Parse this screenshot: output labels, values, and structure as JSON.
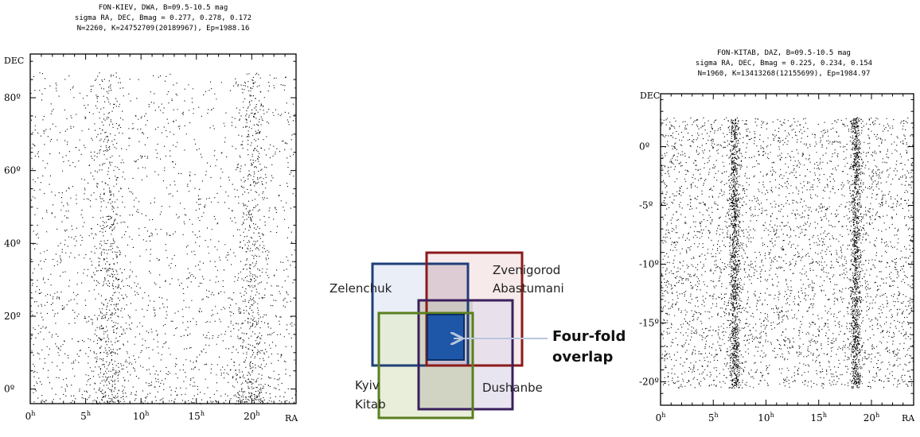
{
  "chart_data": [
    {
      "type": "scatter",
      "title": [
        "FON-KIEV, DWA, B=09.5-10.5 mag",
        "sigma RA, DEC, Bmag = 0.277, 0.278, 0.172",
        "N=2260, K=24752709(20189967), Ep=1988.16"
      ],
      "xlabel": "RA",
      "ylabel": "DEC",
      "xticks": [
        {
          "value": 0,
          "label": "0",
          "sup": "h"
        },
        {
          "value": 5,
          "label": "5",
          "sup": "h"
        },
        {
          "value": 10,
          "label": "10",
          "sup": "h"
        },
        {
          "value": 15,
          "label": "15",
          "sup": "h"
        },
        {
          "value": 20,
          "label": "20",
          "sup": "h"
        }
      ],
      "yticks": [
        {
          "value": 0,
          "label": "0º"
        },
        {
          "value": 20,
          "label": "20º"
        },
        {
          "value": 40,
          "label": "40º"
        },
        {
          "value": 60,
          "label": "60º"
        },
        {
          "value": 80,
          "label": "80º"
        }
      ],
      "xlim": [
        0,
        24
      ],
      "ylim": [
        -4,
        92
      ],
      "data_extent": {
        "ra": [
          0,
          24
        ],
        "dec": [
          -4,
          87
        ]
      },
      "density_bands_ra": [
        7,
        20
      ]
    },
    {
      "type": "scatter",
      "title": [
        "FON-KITAB, DAZ, B=09.5-10.5 mag",
        "sigma RA, DEC, Bmag = 0.225, 0.234, 0.154",
        "N=1960, K=13413268(12155699), Ep=1984.97"
      ],
      "xlabel": "RA",
      "ylabel": "DEC",
      "xticks": [
        {
          "value": 0,
          "label": "0",
          "sup": "h"
        },
        {
          "value": 5,
          "label": "5",
          "sup": "h"
        },
        {
          "value": 10,
          "label": "10",
          "sup": "h"
        },
        {
          "value": 15,
          "label": "15",
          "sup": "h"
        },
        {
          "value": 20,
          "label": "20",
          "sup": "h"
        }
      ],
      "yticks": [
        {
          "value": 0,
          "label": "0º"
        },
        {
          "value": -5,
          "label": "-5º"
        },
        {
          "value": -10,
          "label": "-10º"
        },
        {
          "value": -15,
          "label": "-15º"
        },
        {
          "value": -20,
          "label": "-20º"
        }
      ],
      "xlim": [
        0,
        24
      ],
      "ylim": [
        -22,
        4.5
      ],
      "data_extent": {
        "ra": [
          0,
          24
        ],
        "dec": [
          -20.5,
          2.5
        ]
      },
      "density_bands_ra": [
        7,
        18.5
      ]
    }
  ],
  "overlap_diagram": {
    "labels": {
      "zelenchuk": "Zelenchuk",
      "zvenigorod": "Zvenigorod",
      "abastumani": "Abastumani",
      "kyiv": "Kyiv",
      "kitab": "Kitab",
      "dushanbe": "Dushanbe",
      "four_fold_line1": "Four-fold",
      "four_fold_line2": "overlap"
    },
    "colors": {
      "zelenchuk": "#1f3f78",
      "zvenigorod": "#8b1a1a",
      "kyiv_kitab": "#5a7f1e",
      "dushanbe": "#3a1f5c",
      "overlap_fill": "#1f57a8"
    }
  }
}
